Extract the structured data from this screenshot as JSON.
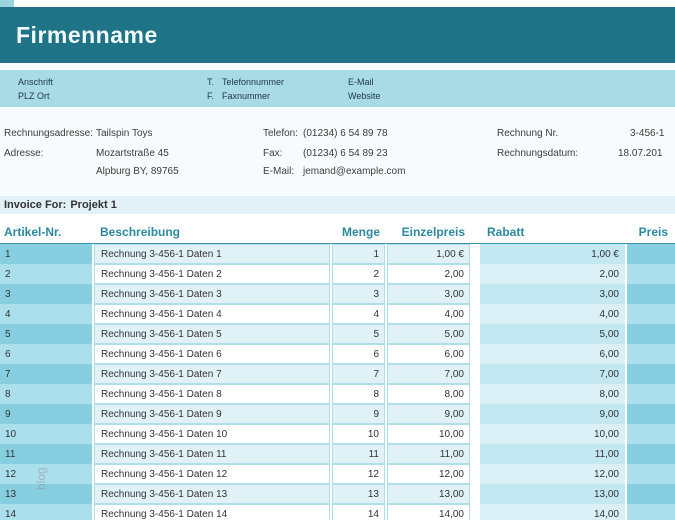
{
  "header": {
    "company_name": "Firmenname"
  },
  "contact_band": {
    "anschrift_label": "Anschrift",
    "plz_ort_label": "PLZ Ort",
    "telefon_prefix": "T.",
    "telefon_label": "Telefonnummer",
    "fax_prefix": "F.",
    "fax_label": "Faxnummer",
    "email_label": "E-Mail",
    "website_label": "Website"
  },
  "details": {
    "rechnungsadresse_label": "Rechnungsadresse:",
    "rechnungsadresse_value": "Tailspin Toys",
    "adresse_label": "Adresse:",
    "adresse_line1": "Mozartstraße 45",
    "adresse_line2": "Alpburg BY, 89765",
    "telefon_label": "Telefon:",
    "telefon_value": "(01234) 6 54 89 78",
    "fax_label": "Fax:",
    "fax_value": "(01234) 6 54 89 23",
    "email_label": "E-Mail:",
    "email_value": "jemand@example.com",
    "rechnung_nr_label": "Rechnung Nr.",
    "rechnung_nr_value": "3-456-1",
    "rechnungsdatum_label": "Rechnungsdatum:",
    "rechnungsdatum_value": "18.07.201"
  },
  "invoice_for": {
    "label": "Invoice For:",
    "value": "Projekt 1"
  },
  "table": {
    "headers": [
      "Artikel-Nr.",
      "Beschreibung",
      "Menge",
      "Einzelpreis",
      "Rabatt",
      "Preis"
    ],
    "rows": [
      {
        "artikel": "1",
        "beschreibung": "Rechnung 3-456-1 Daten 1",
        "menge": "1",
        "einzelpreis": "1,00 €",
        "rabatt": "1,00 €",
        "preis": ""
      },
      {
        "artikel": "2",
        "beschreibung": "Rechnung 3-456-1 Daten 2",
        "menge": "2",
        "einzelpreis": "2,00",
        "rabatt": "2,00",
        "preis": ""
      },
      {
        "artikel": "3",
        "beschreibung": "Rechnung 3-456-1 Daten 3",
        "menge": "3",
        "einzelpreis": "3,00",
        "rabatt": "3,00",
        "preis": ""
      },
      {
        "artikel": "4",
        "beschreibung": "Rechnung 3-456-1 Daten 4",
        "menge": "4",
        "einzelpreis": "4,00",
        "rabatt": "4,00",
        "preis": ""
      },
      {
        "artikel": "5",
        "beschreibung": "Rechnung 3-456-1 Daten 5",
        "menge": "5",
        "einzelpreis": "5,00",
        "rabatt": "5,00",
        "preis": ""
      },
      {
        "artikel": "6",
        "beschreibung": "Rechnung 3-456-1 Daten 6",
        "menge": "6",
        "einzelpreis": "6,00",
        "rabatt": "6,00",
        "preis": ""
      },
      {
        "artikel": "7",
        "beschreibung": "Rechnung 3-456-1 Daten 7",
        "menge": "7",
        "einzelpreis": "7,00",
        "rabatt": "7,00",
        "preis": ""
      },
      {
        "artikel": "8",
        "beschreibung": "Rechnung 3-456-1 Daten 8",
        "menge": "8",
        "einzelpreis": "8,00",
        "rabatt": "8,00",
        "preis": ""
      },
      {
        "artikel": "9",
        "beschreibung": "Rechnung 3-456-1 Daten 9",
        "menge": "9",
        "einzelpreis": "9,00",
        "rabatt": "9,00",
        "preis": ""
      },
      {
        "artikel": "10",
        "beschreibung": "Rechnung 3-456-1 Daten 10",
        "menge": "10",
        "einzelpreis": "10,00",
        "rabatt": "10,00",
        "preis": ""
      },
      {
        "artikel": "11",
        "beschreibung": "Rechnung 3-456-1 Daten 11",
        "menge": "11",
        "einzelpreis": "11,00",
        "rabatt": "11,00",
        "preis": ""
      },
      {
        "artikel": "12",
        "beschreibung": "Rechnung 3-456-1 Daten 12",
        "menge": "12",
        "einzelpreis": "12,00",
        "rabatt": "12,00",
        "preis": ""
      },
      {
        "artikel": "13",
        "beschreibung": "Rechnung 3-456-1 Daten 13",
        "menge": "13",
        "einzelpreis": "13,00",
        "rabatt": "13,00",
        "preis": ""
      },
      {
        "artikel": "14",
        "beschreibung": "Rechnung 3-456-1 Daten 14",
        "menge": "14",
        "einzelpreis": "14,00",
        "rabatt": "14,00",
        "preis": ""
      }
    ]
  },
  "watermark": "blog",
  "colors": {
    "header_band": "#1f7386",
    "contact_band": "#a9dbe7",
    "accent_teal": "#2c89a0",
    "row_dark": "#87cfe0",
    "row_light": "#abdfeb",
    "row_pale": "#e0f2f8",
    "rabatt_dark": "#c3e8f1",
    "rabatt_light": "#daf0f6"
  }
}
